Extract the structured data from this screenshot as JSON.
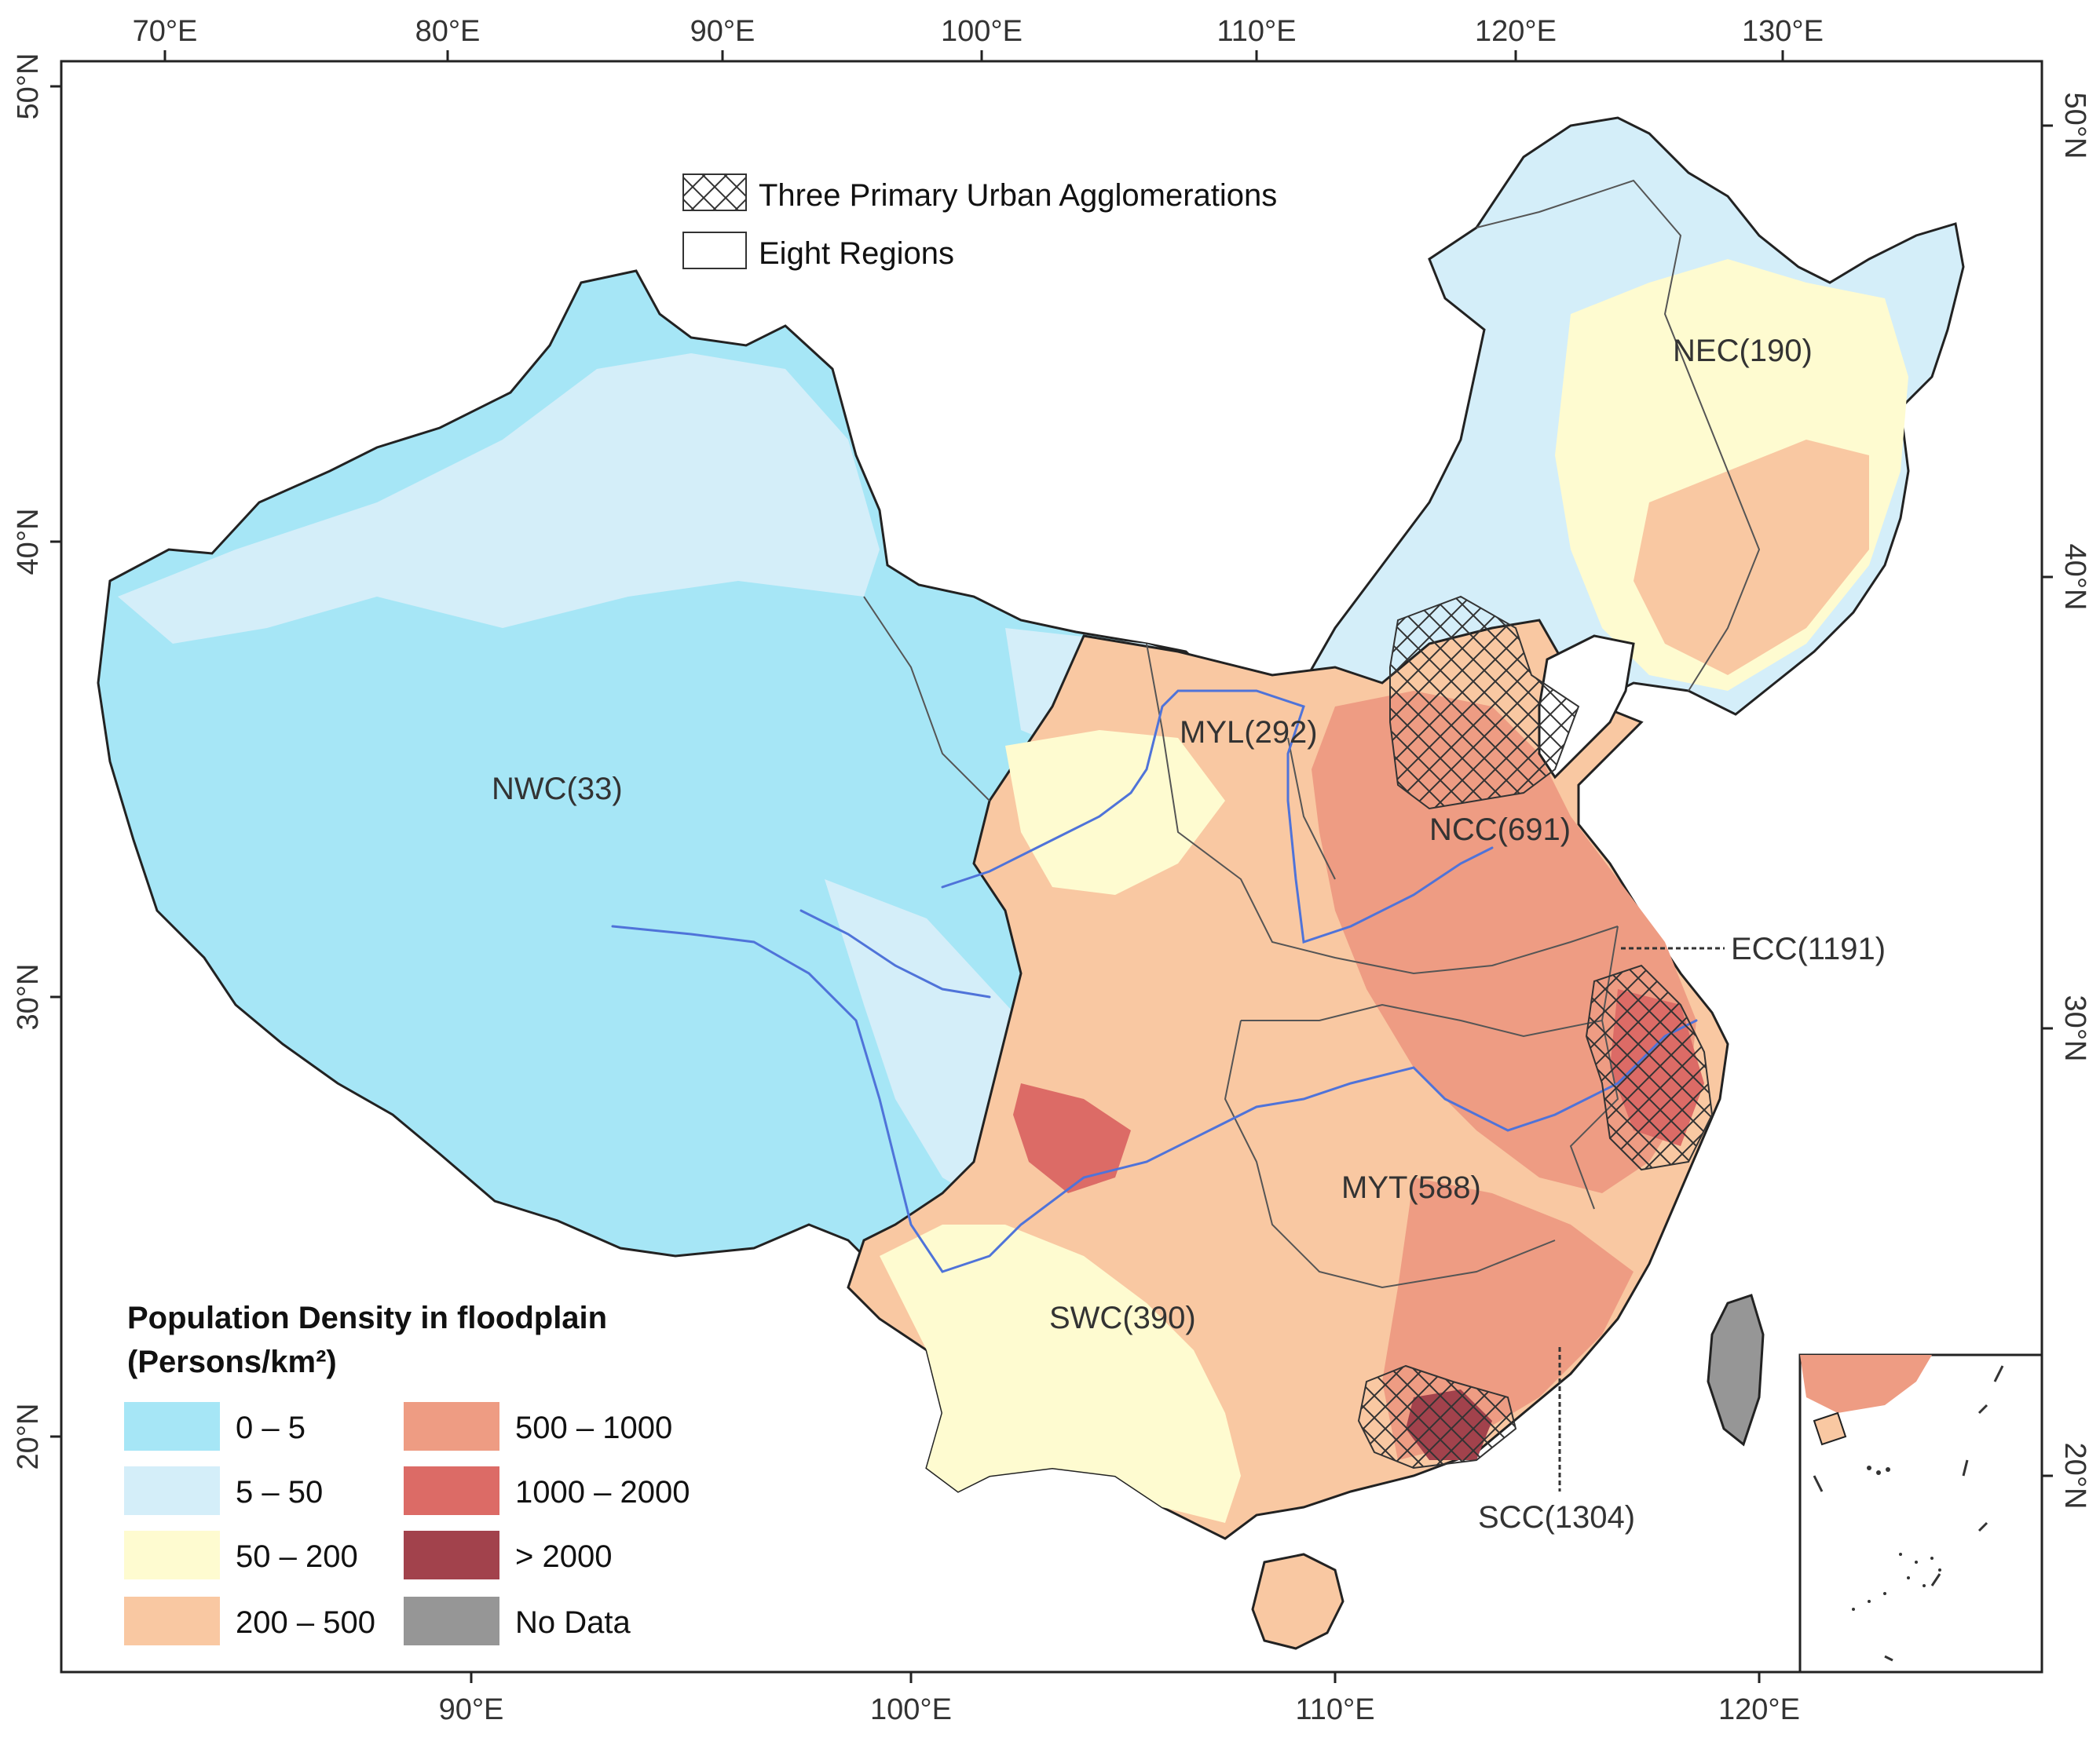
{
  "axes": {
    "top_lon_labels": [
      "70°E",
      "80°E",
      "90°E",
      "100°E",
      "110°E",
      "120°E",
      "130°E"
    ],
    "bottom_lon_labels": [
      "90°E",
      "100°E",
      "110°E",
      "120°E"
    ],
    "left_lat_labels": [
      "50°N",
      "40°N",
      "30°N",
      "20°N"
    ],
    "right_lat_labels": [
      "50°N",
      "40°N",
      "30°N",
      "20°N"
    ]
  },
  "overlay_legend": {
    "hatch_label": "Three Primary Urban Agglomerations",
    "outline_label": "Eight Regions"
  },
  "regions": [
    {
      "name": "NEC(190)"
    },
    {
      "name": "MYL(292)"
    },
    {
      "name": "NWC(33)"
    },
    {
      "name": "NCC(691)"
    },
    {
      "name": "ECC(1191)"
    },
    {
      "name": "MYT(588)"
    },
    {
      "name": "SWC(390)"
    },
    {
      "name": "SCC(1304)"
    }
  ],
  "legend": {
    "title_line1": "Population Density in floodplain",
    "title_line2": "(Persons/km²)",
    "classes": [
      {
        "label": "0 – 5",
        "color": "#a6e6f6"
      },
      {
        "label": "5 – 50",
        "color": "#d4eef9"
      },
      {
        "label": "50 – 200",
        "color": "#fefbd0"
      },
      {
        "label": "200 – 500",
        "color": "#f9c8a2"
      },
      {
        "label": "500 – 1000",
        "color": "#ee9c83"
      },
      {
        "label": "1000 – 2000",
        "color": "#dc6b66"
      },
      {
        "label": "> 2000",
        "color": "#a2424c"
      },
      {
        "label": "No Data",
        "color": "#969696"
      }
    ]
  },
  "colors": {
    "river": "#4f73d9",
    "border": "#222222",
    "region_outline": "#555555",
    "hatch": "#333333"
  }
}
